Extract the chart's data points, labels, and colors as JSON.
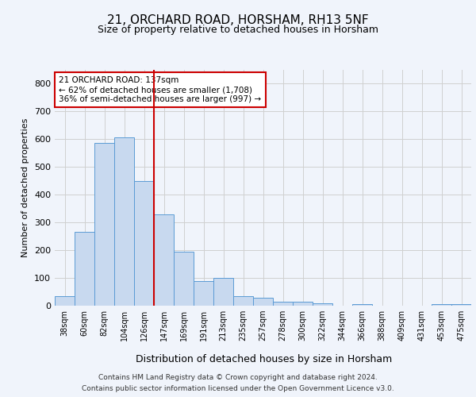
{
  "title1": "21, ORCHARD ROAD, HORSHAM, RH13 5NF",
  "title2": "Size of property relative to detached houses in Horsham",
  "xlabel": "Distribution of detached houses by size in Horsham",
  "ylabel": "Number of detached properties",
  "categories": [
    "38sqm",
    "60sqm",
    "82sqm",
    "104sqm",
    "126sqm",
    "147sqm",
    "169sqm",
    "191sqm",
    "213sqm",
    "235sqm",
    "257sqm",
    "278sqm",
    "300sqm",
    "322sqm",
    "344sqm",
    "366sqm",
    "388sqm",
    "409sqm",
    "431sqm",
    "453sqm",
    "475sqm"
  ],
  "values": [
    35,
    265,
    585,
    605,
    450,
    328,
    195,
    90,
    100,
    33,
    30,
    14,
    13,
    10,
    0,
    5,
    0,
    0,
    0,
    5,
    5
  ],
  "bar_color": "#c8d9ef",
  "bar_edge_color": "#5b9bd5",
  "vline_color": "#cc0000",
  "annotation_text": "21 ORCHARD ROAD: 137sqm\n← 62% of detached houses are smaller (1,708)\n36% of semi-detached houses are larger (997) →",
  "annotation_box_color": "white",
  "annotation_box_edge_color": "#cc0000",
  "ylim": [
    0,
    850
  ],
  "yticks": [
    0,
    100,
    200,
    300,
    400,
    500,
    600,
    700,
    800
  ],
  "grid_color": "#d0d0d0",
  "footnote1": "Contains HM Land Registry data © Crown copyright and database right 2024.",
  "footnote2": "Contains public sector information licensed under the Open Government Licence v3.0.",
  "bg_color": "#f0f4fb"
}
